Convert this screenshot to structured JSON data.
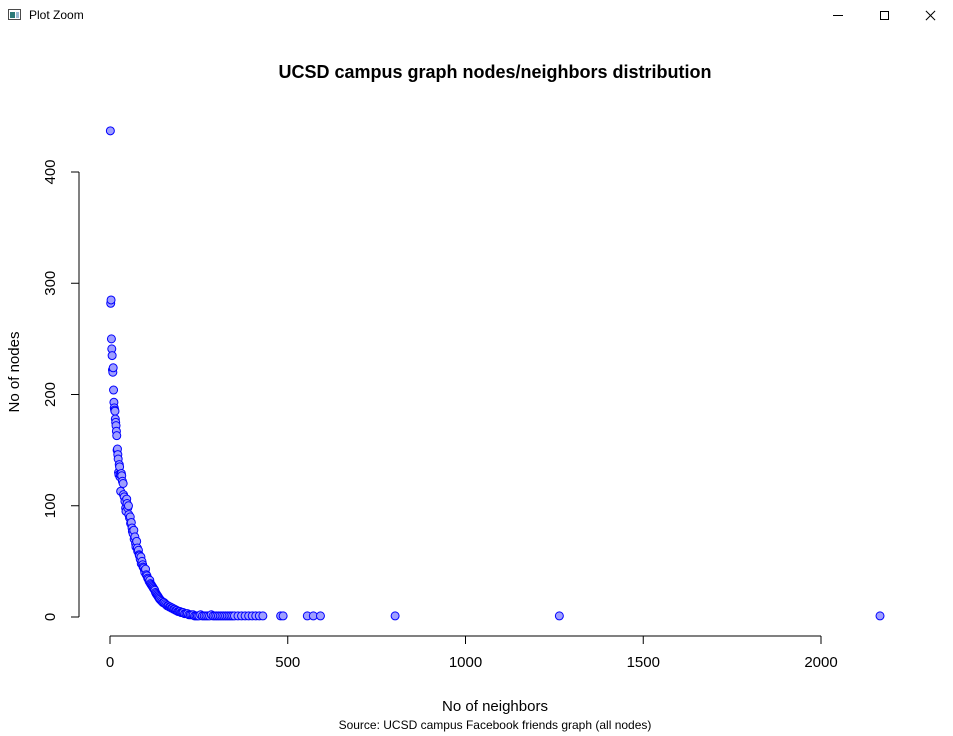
{
  "window": {
    "title": "Plot Zoom",
    "icon": "plot-zoom-app-icon",
    "buttons": [
      "minimize-icon",
      "maximize-icon",
      "close-icon"
    ]
  },
  "chart_data": {
    "type": "scatter",
    "title": "UCSD campus graph nodes/neighbors distribution",
    "xlabel": "No of neighbors",
    "ylabel": "No of nodes",
    "subtitle": "Source: UCSD campus Facebook friends graph (all nodes)",
    "xlim": [
      0,
      2000
    ],
    "ylim": [
      0,
      400
    ],
    "xticks": [
      0,
      500,
      1000,
      1500,
      2000
    ],
    "yticks": [
      0,
      100,
      200,
      300,
      400
    ],
    "grid": false,
    "legend": "none",
    "marker_fill": "#9f9fff",
    "marker_stroke": "#0000ff",
    "points": [
      [
        1,
        437
      ],
      [
        2,
        282
      ],
      [
        3,
        285
      ],
      [
        4,
        250
      ],
      [
        5,
        241
      ],
      [
        6,
        235
      ],
      [
        7,
        222
      ],
      [
        8,
        220
      ],
      [
        9,
        224
      ],
      [
        10,
        204
      ],
      [
        11,
        193
      ],
      [
        12,
        188
      ],
      [
        13,
        186
      ],
      [
        14,
        185
      ],
      [
        15,
        178
      ],
      [
        16,
        175
      ],
      [
        17,
        172
      ],
      [
        18,
        167
      ],
      [
        19,
        163
      ],
      [
        20,
        150
      ],
      [
        21,
        151
      ],
      [
        22,
        146
      ],
      [
        23,
        142
      ],
      [
        24,
        130
      ],
      [
        25,
        128
      ],
      [
        26,
        137
      ],
      [
        27,
        135
      ],
      [
        28,
        126
      ],
      [
        29,
        128
      ],
      [
        30,
        113
      ],
      [
        32,
        129
      ],
      [
        33,
        127
      ],
      [
        35,
        122
      ],
      [
        37,
        120
      ],
      [
        38,
        110
      ],
      [
        40,
        108
      ],
      [
        42,
        104
      ],
      [
        44,
        98
      ],
      [
        45,
        95
      ],
      [
        47,
        106
      ],
      [
        48,
        102
      ],
      [
        50,
        98
      ],
      [
        52,
        100
      ],
      [
        53,
        92
      ],
      [
        55,
        89
      ],
      [
        57,
        90
      ],
      [
        58,
        84
      ],
      [
        60,
        85
      ],
      [
        62,
        80
      ],
      [
        63,
        77
      ],
      [
        65,
        75
      ],
      [
        67,
        78
      ],
      [
        68,
        70
      ],
      [
        70,
        72
      ],
      [
        72,
        66
      ],
      [
        73,
        63
      ],
      [
        75,
        68
      ],
      [
        77,
        62
      ],
      [
        78,
        59
      ],
      [
        80,
        60
      ],
      [
        82,
        56
      ],
      [
        83,
        55
      ],
      [
        85,
        52
      ],
      [
        87,
        54
      ],
      [
        88,
        48
      ],
      [
        90,
        50
      ],
      [
        92,
        47
      ],
      [
        93,
        45
      ],
      [
        95,
        44
      ],
      [
        97,
        42
      ],
      [
        98,
        40
      ],
      [
        100,
        43
      ],
      [
        102,
        38
      ],
      [
        104,
        37
      ],
      [
        106,
        35
      ],
      [
        108,
        34
      ],
      [
        110,
        32
      ],
      [
        112,
        33
      ],
      [
        114,
        30
      ],
      [
        116,
        29
      ],
      [
        118,
        28
      ],
      [
        120,
        27
      ],
      [
        122,
        26
      ],
      [
        124,
        25
      ],
      [
        126,
        24
      ],
      [
        128,
        22
      ],
      [
        130,
        21
      ],
      [
        132,
        20
      ],
      [
        134,
        19
      ],
      [
        136,
        18
      ],
      [
        138,
        17
      ],
      [
        140,
        16
      ],
      [
        143,
        15
      ],
      [
        146,
        14
      ],
      [
        149,
        13
      ],
      [
        152,
        13
      ],
      [
        155,
        12
      ],
      [
        158,
        11
      ],
      [
        161,
        10
      ],
      [
        164,
        10
      ],
      [
        167,
        9
      ],
      [
        170,
        9
      ],
      [
        173,
        8
      ],
      [
        176,
        8
      ],
      [
        179,
        7
      ],
      [
        182,
        7
      ],
      [
        185,
        6
      ],
      [
        188,
        6
      ],
      [
        191,
        5
      ],
      [
        194,
        5
      ],
      [
        197,
        5
      ],
      [
        200,
        4
      ],
      [
        203,
        4
      ],
      [
        206,
        4
      ],
      [
        210,
        3
      ],
      [
        214,
        3
      ],
      [
        218,
        3
      ],
      [
        222,
        2
      ],
      [
        226,
        2
      ],
      [
        230,
        2
      ],
      [
        234,
        2
      ],
      [
        238,
        1
      ],
      [
        242,
        1
      ],
      [
        246,
        1
      ],
      [
        250,
        1
      ],
      [
        255,
        2
      ],
      [
        260,
        1
      ],
      [
        265,
        1
      ],
      [
        270,
        1
      ],
      [
        275,
        1
      ],
      [
        280,
        1
      ],
      [
        285,
        2
      ],
      [
        290,
        1
      ],
      [
        295,
        1
      ],
      [
        300,
        1
      ],
      [
        305,
        1
      ],
      [
        310,
        1
      ],
      [
        315,
        1
      ],
      [
        320,
        1
      ],
      [
        325,
        1
      ],
      [
        330,
        1
      ],
      [
        335,
        1
      ],
      [
        340,
        1
      ],
      [
        345,
        1
      ],
      [
        350,
        1
      ],
      [
        360,
        1
      ],
      [
        370,
        1
      ],
      [
        380,
        1
      ],
      [
        390,
        1
      ],
      [
        400,
        1
      ],
      [
        410,
        1
      ],
      [
        420,
        1
      ],
      [
        430,
        1
      ],
      [
        480,
        1
      ],
      [
        487,
        1
      ],
      [
        555,
        1
      ],
      [
        572,
        1
      ],
      [
        592,
        1
      ],
      [
        802,
        1
      ],
      [
        1264,
        1
      ],
      [
        2166,
        1
      ]
    ]
  }
}
